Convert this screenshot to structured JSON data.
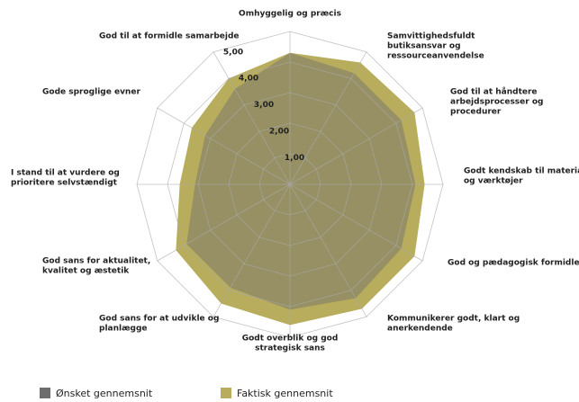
{
  "chart_data": {
    "type": "radar",
    "categories": [
      [
        "Omhyggelig og præcis"
      ],
      [
        "Samvittighedsfuldt",
        "butiksansvar og",
        "ressourceanvendelse"
      ],
      [
        "God til at håndtere",
        "arbejdsprocesser og",
        "procedurer"
      ],
      [
        "Godt kendskab til materialer",
        "og værktøjer"
      ],
      [
        "God og pædagogisk formidler"
      ],
      [
        "Kommunikerer godt, klart og",
        "anerkendende"
      ],
      [
        "Godt overblik og god",
        "strategisk sans"
      ],
      [
        "God sans for at udvikle og",
        "planlægge"
      ],
      [
        "God sans for aktualitet,",
        "kvalitet og æstetik"
      ],
      [
        "I stand til at vurdere og",
        "prioritere selvstændigt"
      ],
      [
        "Gode sproglige evner"
      ],
      [
        "God til at formidle samarbejde"
      ]
    ],
    "series": [
      {
        "name": "Faktisk gennemsnit",
        "color": "#b8ad5d",
        "values": [
          4.3,
          4.6,
          4.7,
          4.4,
          4.7,
          4.7,
          4.6,
          4.5,
          4.3,
          3.6,
          3.7,
          4.0
        ]
      },
      {
        "name": "Ønsket gennemsnit",
        "color": "#6d6d6d",
        "values": [
          4.3,
          4.2,
          4.2,
          4.1,
          4.2,
          4.3,
          4.1,
          3.9,
          3.9,
          3.1,
          3.2,
          3.6
        ]
      }
    ],
    "ylim": [
      0,
      5
    ],
    "yticks": [
      {
        "value": 1,
        "label": "1,00"
      },
      {
        "value": 2,
        "label": "2,00"
      },
      {
        "value": 3,
        "label": "3,00"
      },
      {
        "value": 4,
        "label": "4,00"
      },
      {
        "value": 5,
        "label": "5,00"
      }
    ],
    "grid": true
  }
}
